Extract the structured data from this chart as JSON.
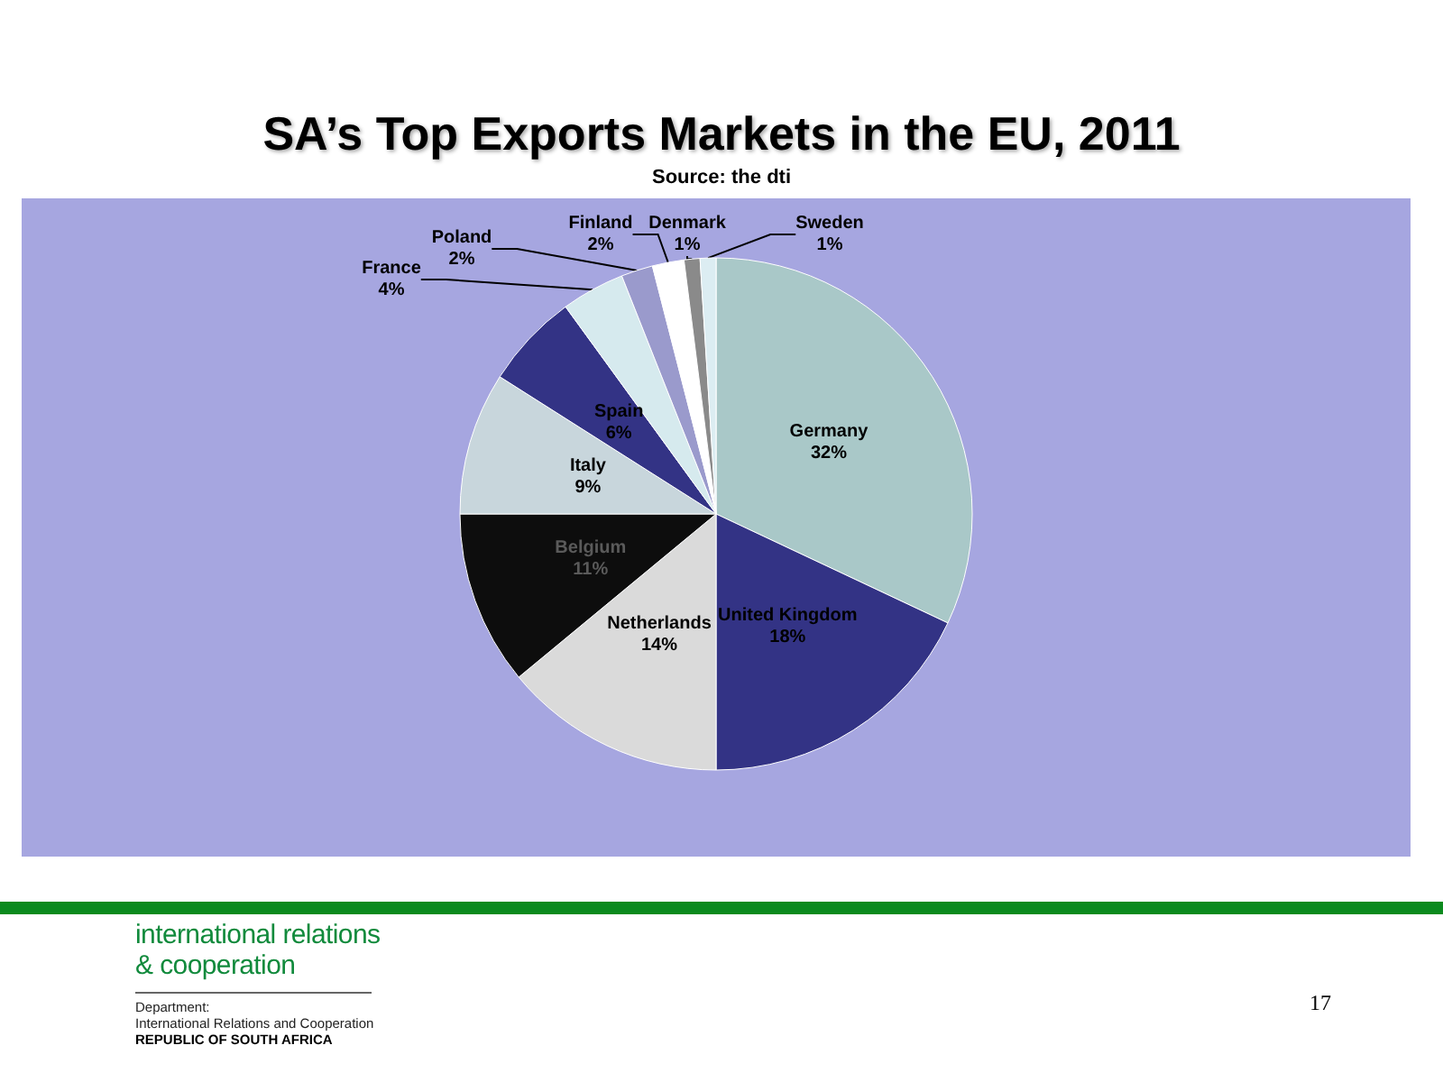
{
  "chart_data": {
    "type": "pie",
    "title": "SA’s Top Exports Markets in the EU, 2011",
    "subtitle": "Source: the dti",
    "categories": [
      "Germany",
      "United Kingdom",
      "Netherlands",
      "Belgium",
      "Italy",
      "Spain",
      "France",
      "Poland",
      "Finland",
      "Denmark",
      "Sweden"
    ],
    "values": [
      32,
      18,
      14,
      11,
      9,
      6,
      4,
      2,
      2,
      1,
      1
    ],
    "value_labels": [
      "32%",
      "18%",
      "14%",
      "11%",
      "9%",
      "6%",
      "4%",
      "2%",
      "2%",
      "1%",
      "1%"
    ],
    "colors": [
      "#a9c8c8",
      "#333385",
      "#dadada",
      "#0d0d0d",
      "#c8d6dc",
      "#333385",
      "#d6eaee",
      "#9a9acc",
      "#ffffff",
      "#8a8a8a",
      "#dcedf2"
    ],
    "annotations": [
      "international relations",
      "& cooperation",
      "Department:",
      "International Relations and Cooperation",
      "REPUBLIC OF SOUTH AFRICA",
      "17"
    ]
  }
}
